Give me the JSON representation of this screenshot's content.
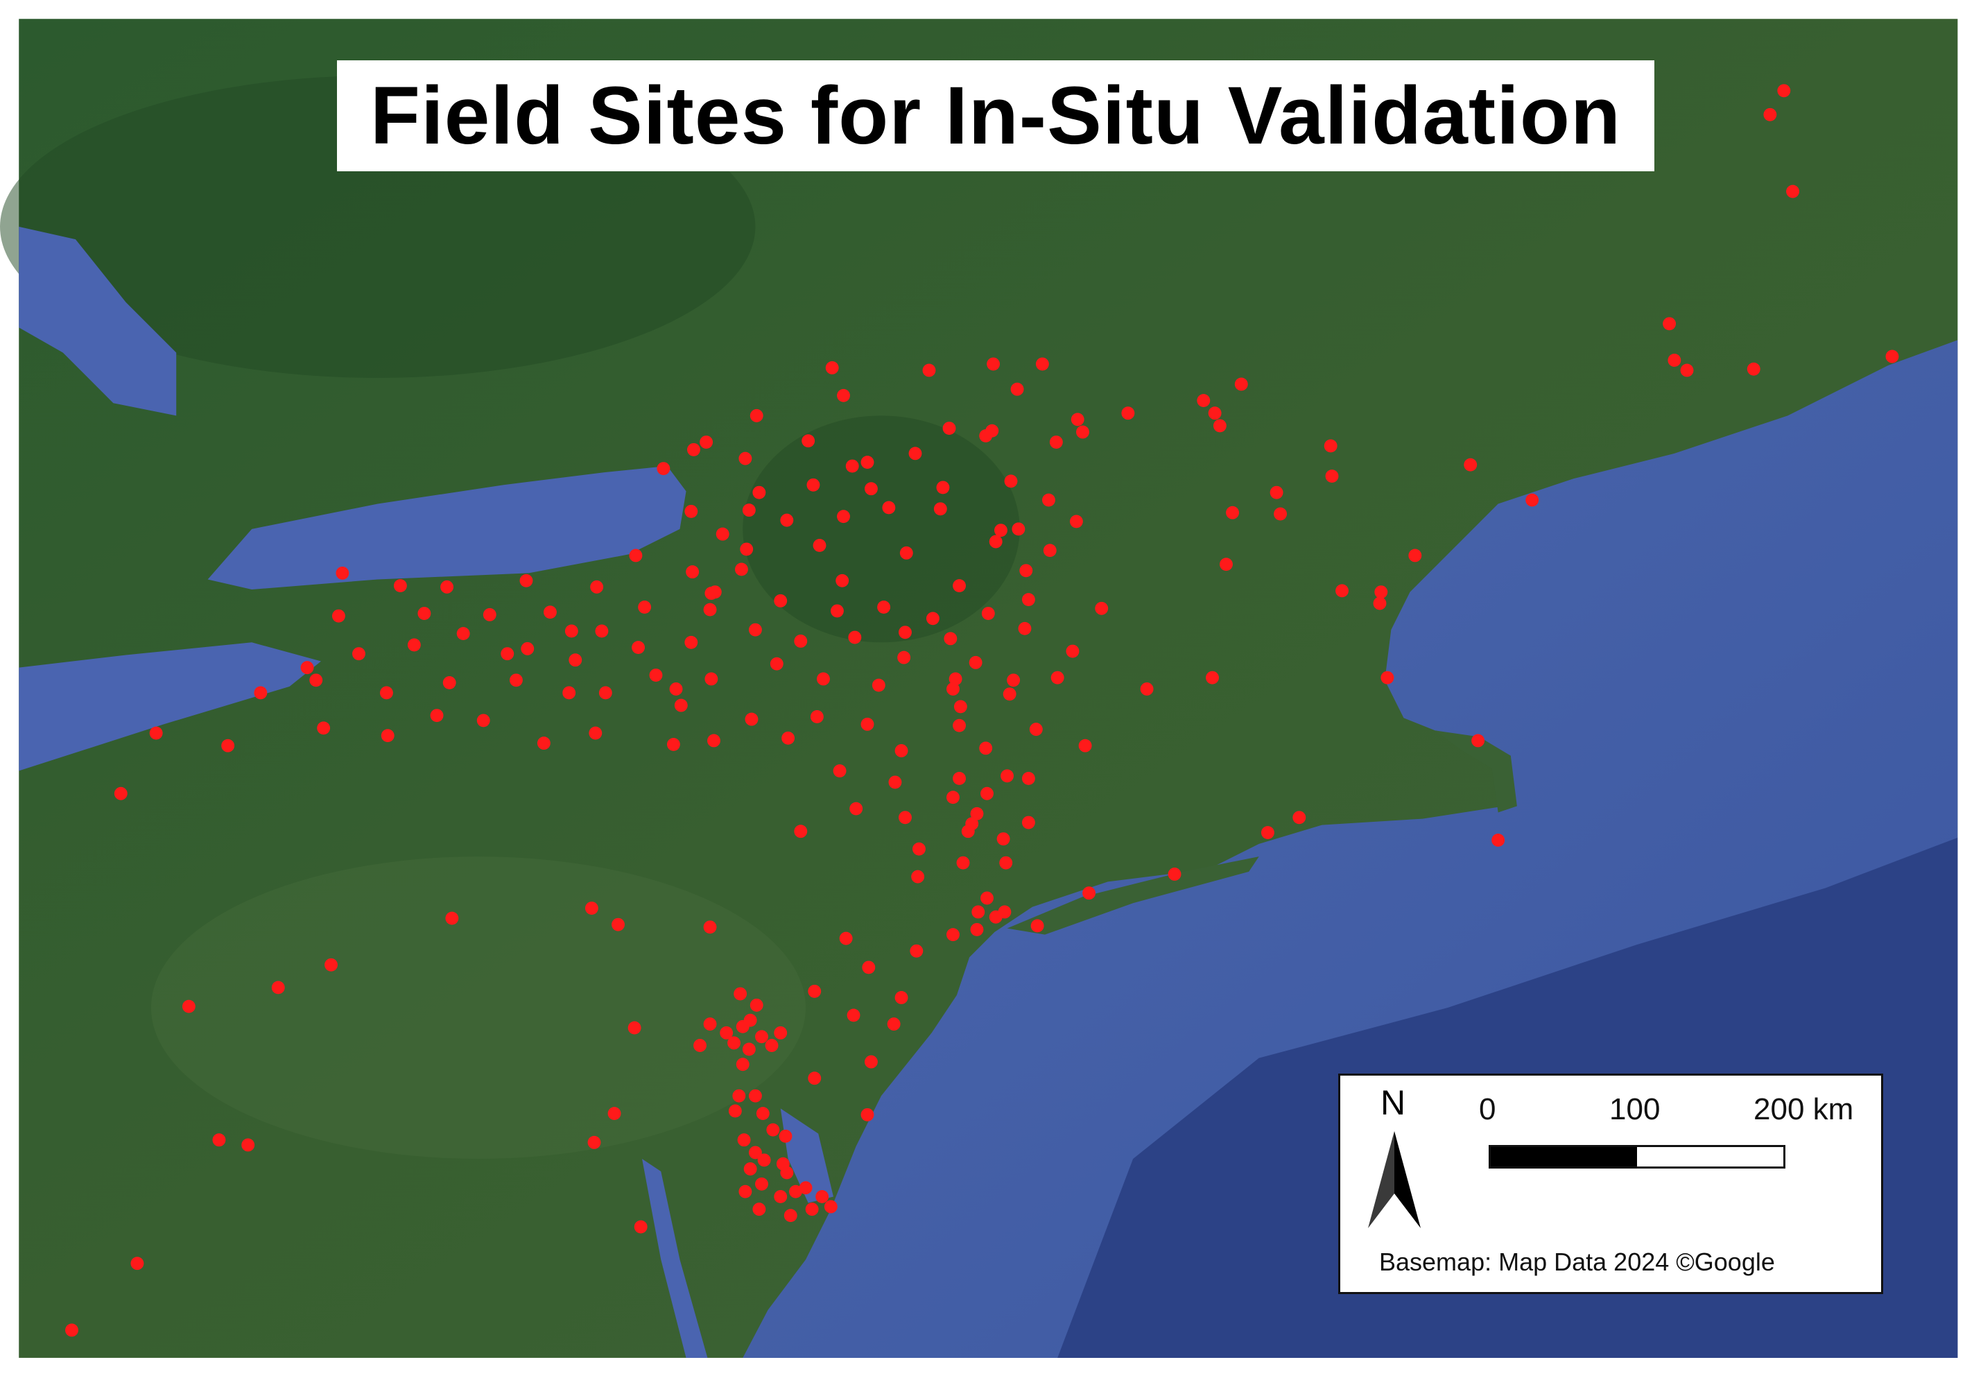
{
  "title": "Field Sites for In-Situ Validation",
  "legend": {
    "north_label": "N",
    "scale_labels": [
      "0",
      "100",
      "200 km"
    ],
    "scale_fill_fraction": 0.5,
    "attribution": "Basemap: Map Data 2024 ©Google"
  },
  "colors": {
    "site_marker": "#ff1a1a",
    "land": "#2f5a2c",
    "water": "#4a64a8",
    "deep_water": "#2b3f80"
  }
}
